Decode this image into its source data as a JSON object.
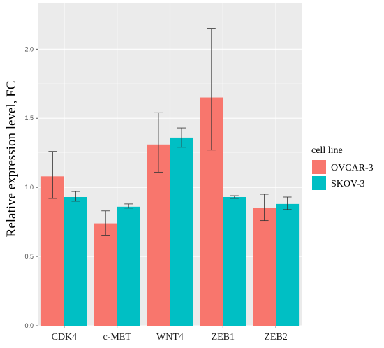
{
  "chart_data": {
    "type": "bar",
    "categories": [
      "CDK4",
      "c-MET",
      "WNT4",
      "ZEB1",
      "ZEB2"
    ],
    "series": [
      {
        "name": "OVCAR-3",
        "color": "#F8766D",
        "values": [
          1.08,
          0.74,
          1.31,
          1.65,
          0.85
        ],
        "error_low": [
          0.92,
          0.65,
          1.11,
          1.27,
          0.76
        ],
        "error_high": [
          1.26,
          0.83,
          1.54,
          2.15,
          0.95
        ]
      },
      {
        "name": "SKOV-3",
        "color": "#00BFC4",
        "values": [
          0.93,
          0.86,
          1.36,
          0.93,
          0.88
        ],
        "error_low": [
          0.9,
          0.85,
          1.29,
          0.92,
          0.84
        ],
        "error_high": [
          0.97,
          0.88,
          1.43,
          0.94,
          0.93
        ]
      }
    ],
    "ylabel": "Relative expression level, FC",
    "xlabel": "",
    "ylim": [
      0,
      2.33
    ],
    "yticks": [
      0.0,
      0.5,
      1.0,
      1.5,
      2.0
    ],
    "ytick_labels": [
      "0.0",
      "0.5",
      "1.0",
      "1.5",
      "2.0"
    ],
    "legend_title": "cell line",
    "legend_position": "right",
    "grid": true,
    "panel_background": "#EBEBEB"
  }
}
